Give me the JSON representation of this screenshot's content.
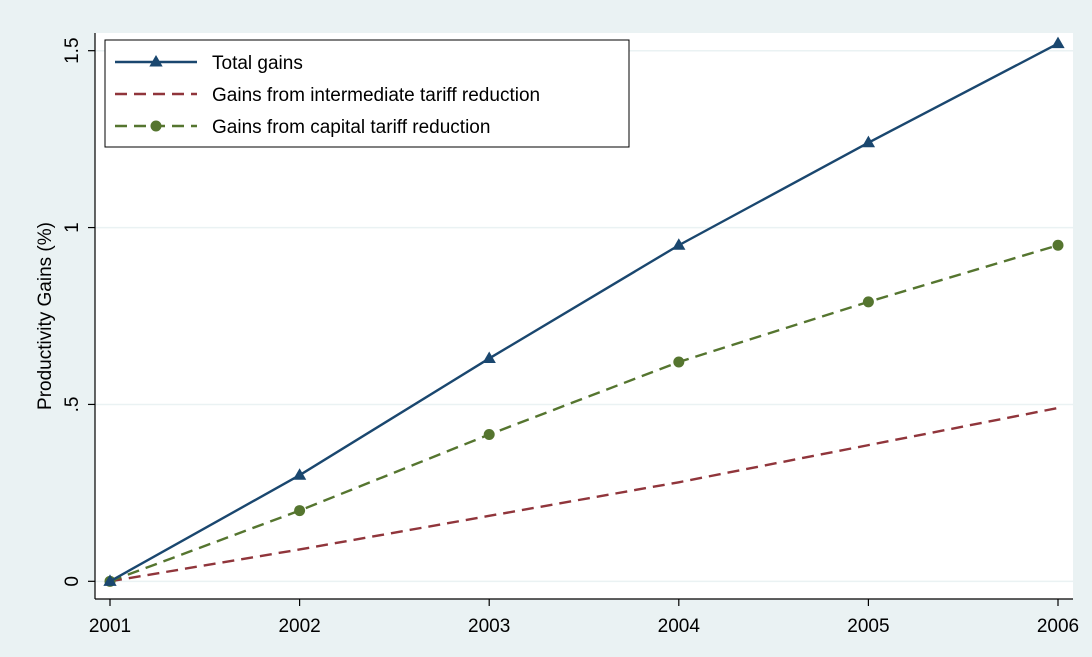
{
  "chart_data": {
    "type": "line",
    "title": "",
    "xlabel": "",
    "ylabel": "Productivity Gains (%)",
    "x": [
      2001,
      2002,
      2003,
      2004,
      2005,
      2006
    ],
    "x_tick_labels": [
      "2001",
      "2002",
      "2003",
      "2004",
      "2005",
      "2006"
    ],
    "xlim": [
      2001,
      2006
    ],
    "y_ticks": [
      0,
      0.5,
      1,
      1.5
    ],
    "y_tick_labels": [
      "0",
      ".5",
      "1",
      "1.5"
    ],
    "ylim": [
      -0.05,
      1.55
    ],
    "grid": "horizontal",
    "legend_position": "top-left",
    "series": [
      {
        "name": "Total gains",
        "values": [
          0,
          0.3,
          0.63,
          0.95,
          1.24,
          1.52
        ],
        "color": "#1a476f",
        "style": "solid",
        "marker": "triangle"
      },
      {
        "name": "Gains from intermediate tariff reduction",
        "values": [
          0,
          0.09,
          0.185,
          0.28,
          0.385,
          0.49
        ],
        "color": "#90353b",
        "style": "dashed",
        "marker": "none"
      },
      {
        "name": "Gains from capital tariff reduction",
        "values": [
          0,
          0.2,
          0.415,
          0.62,
          0.79,
          0.95
        ],
        "color": "#55752f",
        "style": "dashed",
        "marker": "circle"
      }
    ]
  }
}
